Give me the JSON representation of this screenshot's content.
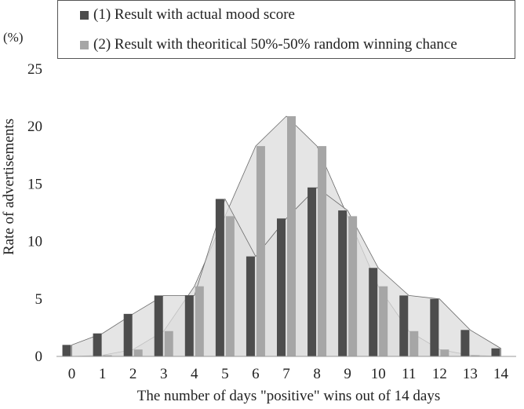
{
  "chart_data": {
    "type": "bar",
    "unit_label": "(%)",
    "xlabel": "The number of days \"positive\" wins out of 14 days",
    "ylabel": "Rate of advertisements",
    "ylim": [
      0,
      25
    ],
    "yticks": [
      "0",
      "5",
      "10",
      "15",
      "20",
      "25"
    ],
    "categories": [
      "0",
      "1",
      "2",
      "3",
      "4",
      "5",
      "6",
      "7",
      "8",
      "9",
      "10",
      "11",
      "12",
      "13",
      "14"
    ],
    "series": [
      {
        "name": "(1) Result with actual mood score",
        "color": "#4d4d4d",
        "values": [
          1.0,
          2.0,
          3.7,
          5.3,
          5.3,
          13.7,
          8.7,
          12.0,
          14.7,
          12.7,
          7.7,
          5.3,
          5.0,
          2.3,
          0.7
        ]
      },
      {
        "name": "(2) Result with theoritical 50%-50% random winning chance",
        "color": "#a6a6a6",
        "values": [
          0.0,
          0.1,
          0.6,
          2.2,
          6.1,
          12.2,
          18.3,
          20.9,
          18.3,
          12.2,
          6.1,
          2.2,
          0.6,
          0.1,
          0.0
        ]
      }
    ],
    "area_fill": "#dcdcdc",
    "grid": false,
    "legend_position": "top"
  }
}
